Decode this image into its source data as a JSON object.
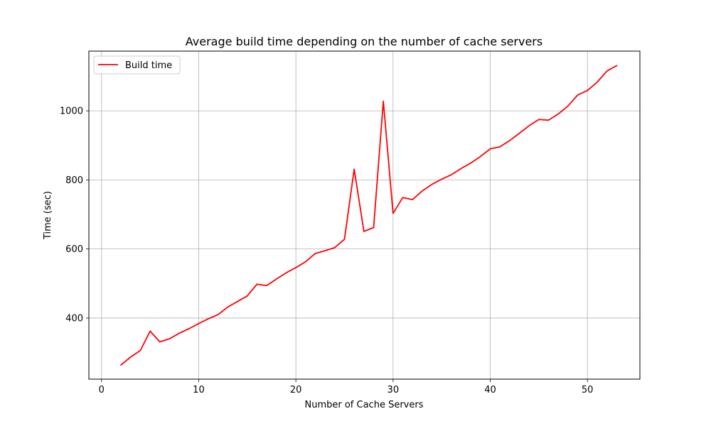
{
  "chart_data": {
    "type": "line",
    "title": "Average build time depending on the number of cache servers",
    "xlabel": "Number of Cache Servers",
    "ylabel": "Time (sec)",
    "xlim": [
      -1.3,
      55.4
    ],
    "ylim": [
      223,
      1173
    ],
    "xticks": [
      0,
      10,
      20,
      30,
      40,
      50
    ],
    "yticks": [
      400,
      600,
      800,
      1000
    ],
    "grid": true,
    "legend_position": "top-left",
    "series": [
      {
        "name": "Build time",
        "color": "#ff0000",
        "x": [
          2,
          3,
          4,
          5,
          6,
          7,
          8,
          9,
          10,
          11,
          12,
          13,
          14,
          15,
          16,
          17,
          18,
          19,
          20,
          21,
          22,
          23,
          24,
          25,
          26,
          27,
          28,
          29,
          30,
          31,
          32,
          33,
          34,
          35,
          36,
          37,
          38,
          39,
          40,
          41,
          42,
          43,
          44,
          45,
          46,
          47,
          48,
          49,
          50,
          51,
          52,
          53
        ],
        "y": [
          264,
          287,
          306,
          362,
          331,
          340,
          356,
          369,
          384,
          398,
          410,
          432,
          448,
          464,
          498,
          494,
          513,
          531,
          546,
          563,
          587,
          595,
          604,
          628,
          831,
          651,
          662,
          1028,
          703,
          749,
          743,
          768,
          787,
          802,
          815,
          833,
          849,
          868,
          890,
          896,
          914,
          935,
          957,
          975,
          973,
          991,
          1014,
          1046,
          1059,
          1083,
          1115,
          1131
        ]
      }
    ]
  }
}
